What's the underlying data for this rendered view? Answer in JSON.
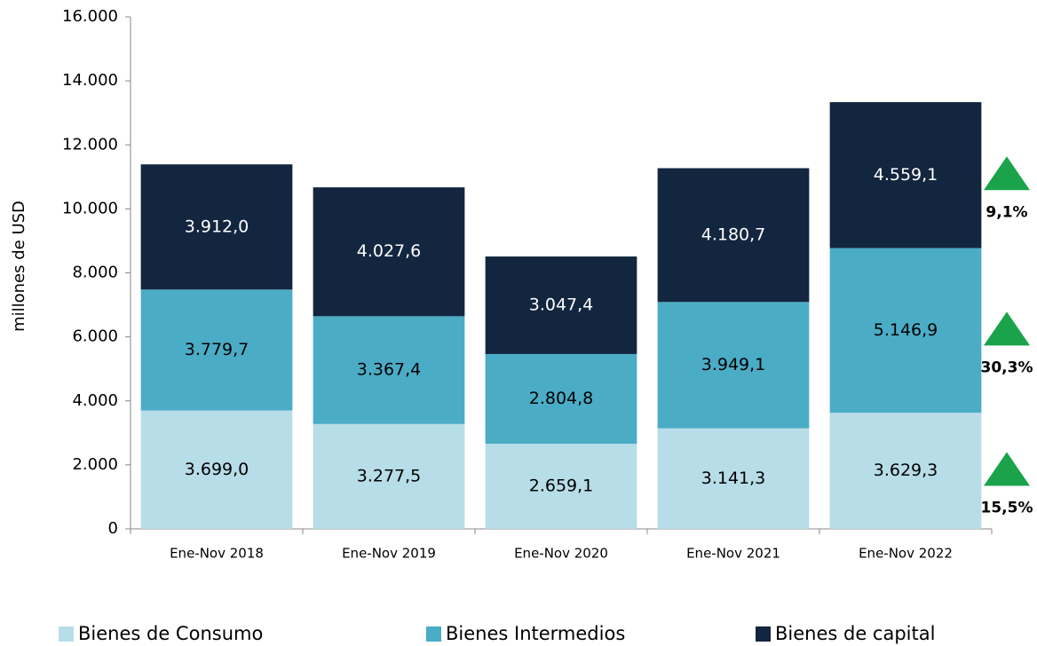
{
  "chart_data": {
    "type": "stacked_bar",
    "y_label": "millones de  USD",
    "categories": [
      "Ene-Nov 2018",
      "Ene-Nov 2019",
      "Ene-Nov 2020",
      "Ene-Nov 2021",
      "Ene-Nov 2022"
    ],
    "series": [
      {
        "name": "Bienes de Consumo",
        "color": "#b7dde8",
        "values": [
          3699.0,
          3277.5,
          2659.1,
          3141.3,
          3629.3
        ],
        "value_labels": [
          "3.699,0",
          "3.277,5",
          "2.659,1",
          "3.141,3",
          "3.629,3"
        ]
      },
      {
        "name": "Bienes Intermedios",
        "color": "#4bacc6",
        "values": [
          3779.7,
          3367.4,
          2804.8,
          3949.1,
          5146.9
        ],
        "value_labels": [
          "3.779,7",
          "3.367,4",
          "2.804,8",
          "3.949,1",
          "5.146,9"
        ]
      },
      {
        "name": "Bienes de capital",
        "color": "#13263f",
        "values": [
          3912.0,
          4027.6,
          3047.4,
          4180.7,
          4559.1
        ],
        "value_labels": [
          "3.912,0",
          "4.027,6",
          "3.047,4",
          "4.180,7",
          "4.559,1"
        ]
      }
    ],
    "annotations": [
      "15,5%",
      "30,3%",
      "9,1%"
    ],
    "annotation_color": "#1aa34a",
    "ylim": [
      0,
      16000
    ],
    "yticks": [
      0,
      {
        "value": 2000,
        "label": "2.000"
      },
      {
        "value": 4000,
        "label": "4.000"
      },
      {
        "value": 6000,
        "label": "6.000"
      },
      {
        "value": 8000,
        "label": "8.000"
      },
      {
        "value": 10000,
        "label": "10.000"
      },
      {
        "value": 12000,
        "label": "12.000"
      },
      {
        "value": 14000,
        "label": "14.000"
      },
      {
        "value": 16000,
        "label": "16.000"
      }
    ],
    "legend": "bottom"
  }
}
